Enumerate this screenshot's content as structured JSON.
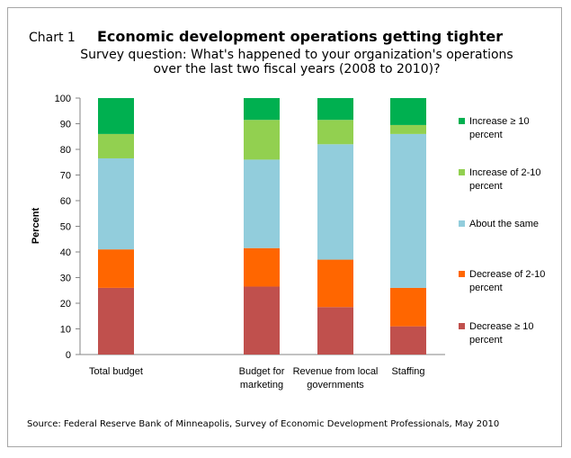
{
  "chart_label": "Chart 1",
  "source": "Source: Federal Reserve Bank of Minneapolis, Survey of Economic Development Professionals, May 2010",
  "chart_data": {
    "type": "bar",
    "stacked": true,
    "title": "Economic development operations getting tighter",
    "subtitle": [
      "Survey question: What's happened to your organization's operations",
      "over the last two fiscal years (2008 to 2010)?"
    ],
    "xlabel": "",
    "ylabel": "Percent",
    "ylim": [
      0,
      100
    ],
    "yticks": [
      0,
      10,
      20,
      30,
      40,
      50,
      60,
      70,
      80,
      90,
      100
    ],
    "grid": false,
    "legend_position": "right",
    "categories": [
      [
        "Total budget"
      ],
      [
        "Budget for",
        "marketing"
      ],
      [
        "Revenue from local",
        "governments"
      ],
      [
        "Staffing"
      ]
    ],
    "series": [
      {
        "name": [
          "Decrease ≥ 10",
          "percent"
        ],
        "color": "#c0504d",
        "values": [
          26,
          26.5,
          18.5,
          11
        ]
      },
      {
        "name": [
          "Decrease of 2-10",
          "percent"
        ],
        "color": "#ff6600",
        "values": [
          15,
          15,
          18.5,
          15
        ]
      },
      {
        "name": [
          "About the same"
        ],
        "color": "#92cddc",
        "values": [
          35.5,
          34.5,
          45,
          60
        ]
      },
      {
        "name": [
          "Increase of  2-10",
          "percent"
        ],
        "color": "#92d050",
        "values": [
          9.5,
          15.5,
          9.5,
          3.5
        ]
      },
      {
        "name": [
          "Increase ≥ 10",
          "percent"
        ],
        "color": "#00b050",
        "values": [
          14,
          8.5,
          8.5,
          10.5
        ]
      }
    ]
  }
}
